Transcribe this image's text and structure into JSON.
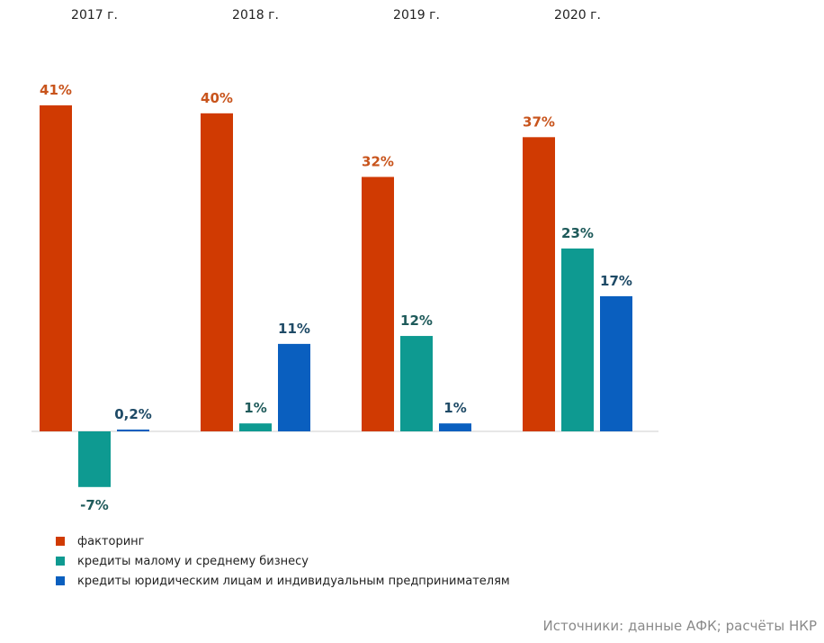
{
  "chart_data": {
    "type": "bar",
    "categories": [
      "2017 г.",
      "2018 г.",
      "2019 г.",
      "2020 г."
    ],
    "series": [
      {
        "name": "факторинг",
        "color": "#d03a02",
        "label_color": "#c8541c",
        "values": [
          41,
          40,
          32,
          37
        ],
        "labels": [
          "41%",
          "40%",
          "32%",
          "37%"
        ]
      },
      {
        "name": "кредиты малому и среднему бизнесу",
        "color": "#0e9a91",
        "label_color": "#1e5a5a",
        "values": [
          -7,
          1,
          12,
          23
        ],
        "labels": [
          "-7%",
          "1%",
          "12%",
          "23%"
        ]
      },
      {
        "name": "кредиты юридическим лицам и индивидуальным предпринимателям",
        "color": "#0a5fbf",
        "label_color": "#1e4a66",
        "values": [
          0.2,
          11,
          1,
          17
        ],
        "labels": [
          "0,2%",
          "11%",
          "1%",
          "17%"
        ]
      }
    ],
    "ylim": [
      -7,
      41
    ],
    "grid": false,
    "legend_position": "bottom-left"
  },
  "source": "Источники: данные АФК; расчёты НКР"
}
